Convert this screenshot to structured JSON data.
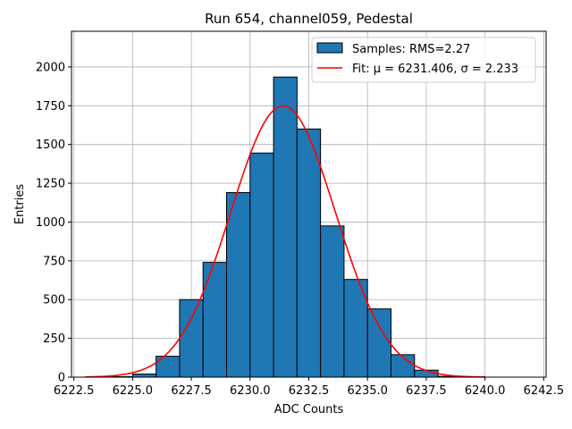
{
  "chart_data": {
    "type": "bar",
    "title": "Run 654, channel059, Pedestal",
    "xlabel": "ADC Counts",
    "ylabel": "Entries",
    "xlim": [
      6222.4,
      6242.6
    ],
    "ylim": [
      0,
      2230
    ],
    "xticks": [
      6222.5,
      6225.0,
      6227.5,
      6230.0,
      6232.5,
      6235.0,
      6237.5,
      6240.0,
      6242.5
    ],
    "xtick_labels": [
      "6222.5",
      "6225.0",
      "6227.5",
      "6230.0",
      "6232.5",
      "6235.0",
      "6237.5",
      "6240.0",
      "6242.5"
    ],
    "yticks": [
      0,
      250,
      500,
      750,
      1000,
      1250,
      1500,
      1750,
      2000
    ],
    "ytick_labels": [
      "0",
      "250",
      "500",
      "750",
      "1000",
      "1250",
      "1500",
      "1750",
      "2000"
    ],
    "grid": true,
    "histogram": {
      "bin_edges": [
        6223,
        6224,
        6225,
        6226,
        6227,
        6228,
        6229,
        6230,
        6231,
        6232,
        6233,
        6234,
        6235,
        6236,
        6237,
        6238,
        6239,
        6240,
        6241,
        6242
      ],
      "counts": [
        2,
        3,
        20,
        135,
        500,
        740,
        1190,
        1445,
        1935,
        1600,
        975,
        630,
        440,
        145,
        45,
        5,
        3,
        0,
        0
      ]
    },
    "fit": {
      "mu": 6231.406,
      "sigma": 2.233,
      "amplitude": 1750,
      "x_range": [
        6223,
        6240
      ]
    },
    "legend": {
      "position": "top-right",
      "entries": [
        {
          "label": "Samples: RMS=2.27",
          "kind": "patch",
          "color": "#1f77b4"
        },
        {
          "label": "Fit: μ = 6231.406, σ = 2.233",
          "kind": "line",
          "color": "#ff0000"
        }
      ]
    },
    "colors": {
      "bars": "#1f77b4",
      "bar_edge": "#000000",
      "fit": "#ff0000",
      "grid": "#b0b0b0"
    }
  }
}
